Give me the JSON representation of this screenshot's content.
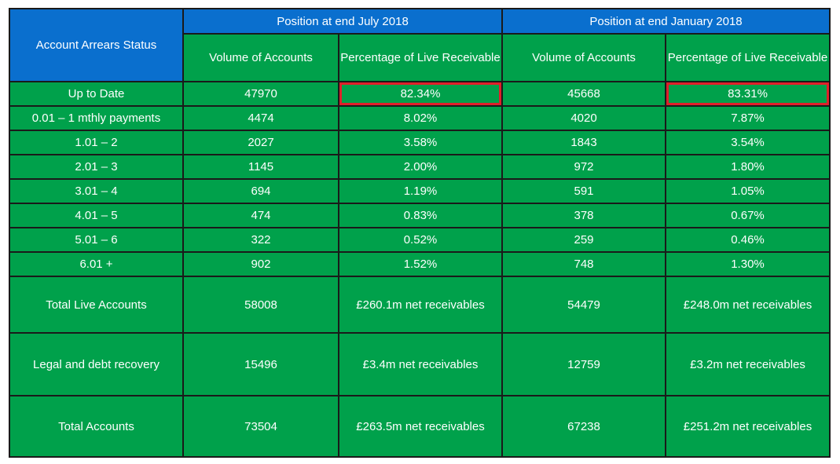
{
  "header": {
    "status_label": "Account Arrears Status",
    "groups": [
      {
        "title": "Position at end July 2018",
        "volume_label": "Volume of Accounts",
        "pct_label": "Percentage of Live Receivable"
      },
      {
        "title": "Position at end January 2018",
        "volume_label": "Volume of Accounts",
        "pct_label": "Percentage of Live Receivable"
      }
    ]
  },
  "rows": [
    {
      "status": "Up to Date",
      "jul_vol": "47970",
      "jul_pct": "82.34%",
      "jan_vol": "45668",
      "jan_pct": "83.31%"
    },
    {
      "status": "0.01 – 1 mthly payments",
      "jul_vol": "4474",
      "jul_pct": "8.02%",
      "jan_vol": "4020",
      "jan_pct": "7.87%"
    },
    {
      "status": "1.01 – 2",
      "jul_vol": "2027",
      "jul_pct": "3.58%",
      "jan_vol": "1843",
      "jan_pct": "3.54%"
    },
    {
      "status": "2.01 – 3",
      "jul_vol": "1145",
      "jul_pct": "2.00%",
      "jan_vol": "972",
      "jan_pct": "1.80%"
    },
    {
      "status": "3.01 – 4",
      "jul_vol": "694",
      "jul_pct": "1.19%",
      "jan_vol": "591",
      "jan_pct": "1.05%"
    },
    {
      "status": "4.01 – 5",
      "jul_vol": "474",
      "jul_pct": "0.83%",
      "jan_vol": "378",
      "jan_pct": "0.67%"
    },
    {
      "status": "5.01 – 6",
      "jul_vol": "322",
      "jul_pct": "0.52%",
      "jan_vol": "259",
      "jan_pct": "0.46%"
    },
    {
      "status": "6.01 +",
      "jul_vol": "902",
      "jul_pct": "1.52%",
      "jan_vol": "748",
      "jan_pct": "1.30%"
    }
  ],
  "totals": [
    {
      "status": "Total  Live Accounts",
      "jul_vol": "58008",
      "jul_pct": "£260.1m net receivables",
      "jan_vol": "54479",
      "jan_pct": "£248.0m net receivables"
    },
    {
      "status": "Legal and debt recovery",
      "jul_vol": "15496",
      "jul_pct": "£3.4m net receivables",
      "jan_vol": "12759",
      "jan_pct": "£3.2m net receivables"
    },
    {
      "status": "Total  Accounts",
      "jul_vol": "73504",
      "jul_pct": "£263.5m net receivables",
      "jan_vol": "67238",
      "jan_pct": "£251.2m net receivables"
    }
  ],
  "colors": {
    "header_blue": "#0a6fce",
    "cell_green": "#00a14b",
    "highlight_red": "#e0202a"
  }
}
